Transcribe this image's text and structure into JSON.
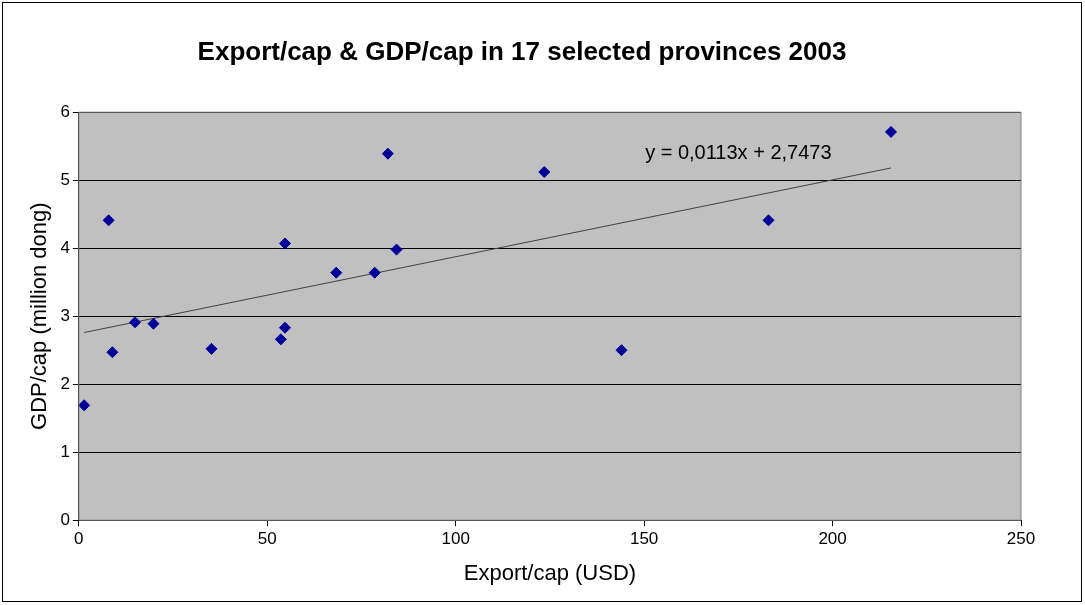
{
  "chart_data": {
    "type": "scatter",
    "title": "Export/cap & GDP/cap in 17 selected provinces 2003",
    "xlabel": "Export/cap (USD)",
    "ylabel": "GDP/cap (million dong)",
    "series": [
      {
        "type": "scatter",
        "marker": "diamond",
        "color": "#000099",
        "x": [
          1.4,
          7.9,
          8.9,
          14.9,
          19.8,
          35.2,
          53.6,
          54.7,
          54.7,
          68.3,
          78.5,
          82.0,
          84.3,
          123.5,
          144,
          183,
          215.5
        ],
        "values": [
          1.69,
          4.41,
          2.47,
          2.91,
          2.89,
          2.52,
          2.66,
          2.83,
          4.07,
          3.64,
          3.64,
          5.39,
          3.98,
          5.12,
          2.5,
          4.41,
          5.71
        ]
      },
      {
        "type": "line",
        "marker": "none",
        "color": "#404040",
        "x": [
          1.4,
          215.5
        ],
        "values": [
          2.76,
          5.18
        ]
      }
    ],
    "annotations": [
      "y = 0,0113x + 2,7473"
    ],
    "xlim": [
      0,
      250
    ],
    "xticks": [
      0,
      50,
      100,
      150,
      200,
      250
    ],
    "ylim": [
      0,
      6
    ],
    "yticks": [
      0,
      1,
      2,
      3,
      4,
      5,
      6
    ],
    "grid": "y",
    "legend": false
  }
}
